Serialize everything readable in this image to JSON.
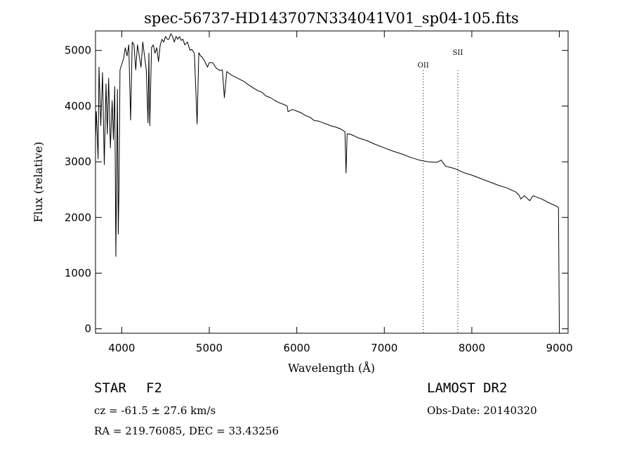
{
  "chart_data": {
    "type": "line",
    "title": "spec-56737-HD143707N334041V01_sp04-105.fits",
    "xlabel": "Wavelength (Å)",
    "ylabel": "Flux (relative)",
    "xlim": [
      3700,
      9100
    ],
    "ylim": [
      -80,
      5350
    ],
    "xticks": [
      4000,
      5000,
      6000,
      7000,
      8000,
      9000
    ],
    "yticks": [
      0,
      1000,
      2000,
      3000,
      4000,
      5000
    ],
    "grid": false,
    "line_markers": [
      {
        "label": "OII",
        "wavelength": 7445
      },
      {
        "label": "SII",
        "wavelength": 7840
      }
    ],
    "series": [
      {
        "x": [
          3700,
          3710,
          3730,
          3740,
          3760,
          3780,
          3800,
          3820,
          3835,
          3850,
          3870,
          3890,
          3905,
          3920,
          3933,
          3950,
          3960,
          3968,
          3980,
          4000,
          4020,
          4040,
          4060,
          4080,
          4101,
          4120,
          4140,
          4160,
          4180,
          4200,
          4220,
          4240,
          4260,
          4280,
          4300,
          4310,
          4320,
          4340,
          4360,
          4380,
          4400,
          4420,
          4440,
          4460,
          4480,
          4500,
          4520,
          4540,
          4560,
          4580,
          4600,
          4620,
          4640,
          4660,
          4680,
          4700,
          4720,
          4750,
          4780,
          4800,
          4830,
          4861,
          4880,
          4900,
          4920,
          4950,
          4980,
          5000,
          5040,
          5080,
          5120,
          5150,
          5172,
          5200,
          5250,
          5300,
          5350,
          5400,
          5450,
          5500,
          5550,
          5600,
          5650,
          5700,
          5750,
          5800,
          5850,
          5890,
          5900,
          5950,
          6000,
          6050,
          6100,
          6150,
          6200,
          6250,
          6300,
          6350,
          6400,
          6450,
          6500,
          6530,
          6550,
          6563,
          6575,
          6600,
          6650,
          6700,
          6800,
          6900,
          7000,
          7100,
          7200,
          7300,
          7400,
          7500,
          7600,
          7650,
          7700,
          7800,
          7900,
          8000,
          8100,
          8200,
          8300,
          8400,
          8500,
          8540,
          8560,
          8600,
          8662,
          8700,
          8800,
          8900,
          8970,
          8990,
          9000
        ],
        "y": [
          3400,
          3900,
          3050,
          4700,
          3650,
          4600,
          2950,
          4400,
          3500,
          4500,
          3250,
          4100,
          3400,
          4350,
          1300,
          4300,
          1700,
          2500,
          4650,
          4750,
          4850,
          5050,
          4900,
          5100,
          3750,
          5150,
          5100,
          4650,
          5100,
          4900,
          4700,
          5150,
          4900,
          4650,
          3700,
          4950,
          3650,
          5050,
          5100,
          4950,
          5050,
          4800,
          5100,
          5200,
          5150,
          5250,
          5200,
          5200,
          5300,
          5250,
          5150,
          5250,
          5200,
          5250,
          5180,
          5200,
          5100,
          5150,
          5000,
          5020,
          4950,
          3680,
          4960,
          4900,
          4880,
          4800,
          4700,
          4780,
          4780,
          4680,
          4640,
          4650,
          4150,
          4620,
          4560,
          4520,
          4480,
          4440,
          4380,
          4330,
          4280,
          4250,
          4180,
          4150,
          4100,
          4060,
          4030,
          4000,
          3900,
          3940,
          3910,
          3880,
          3830,
          3800,
          3740,
          3730,
          3700,
          3670,
          3640,
          3620,
          3590,
          3560,
          3540,
          2800,
          3500,
          3500,
          3470,
          3430,
          3380,
          3310,
          3250,
          3190,
          3140,
          3080,
          3030,
          3000,
          2990,
          3030,
          2920,
          2880,
          2810,
          2760,
          2700,
          2640,
          2580,
          2530,
          2460,
          2400,
          2330,
          2390,
          2300,
          2390,
          2330,
          2250,
          2200,
          2180,
          20
        ]
      }
    ]
  },
  "info": {
    "object_class": "STAR",
    "subclass": "F2",
    "survey": "LAMOST DR2",
    "redshift_text": "cz = -61.5 ± 27.6 km/s",
    "obs_date_text": "Obs-Date: 20140320",
    "coords_text": "RA = 219.76085, DEC =  33.43256"
  }
}
